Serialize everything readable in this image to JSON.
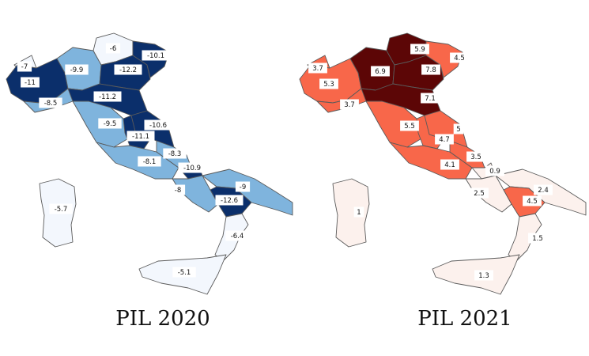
{
  "maps": [
    {
      "id": "2020",
      "title": "PIL 2020",
      "scheme": "blues",
      "regions": [
        {
          "name": "Valle d'Aosta",
          "value": "-7",
          "fill": "#f3f7fd"
        },
        {
          "name": "Piemonte",
          "value": "-11",
          "fill": "#0b2f6b"
        },
        {
          "name": "Lombardia",
          "value": "-9.9",
          "fill": "#7fb4dd"
        },
        {
          "name": "Trentino-Alto Adige",
          "value": "-6",
          "fill": "#f3f7fd"
        },
        {
          "name": "Veneto",
          "value": "-12.2",
          "fill": "#0b2f6b"
        },
        {
          "name": "Friuli-Venezia Giulia",
          "value": "-10.1",
          "fill": "#0b2f6b"
        },
        {
          "name": "Liguria",
          "value": "-8.5",
          "fill": "#7fb4dd"
        },
        {
          "name": "Emilia-Romagna",
          "value": "-11.2",
          "fill": "#0b2f6b"
        },
        {
          "name": "Toscana",
          "value": "-9.5",
          "fill": "#7fb4dd"
        },
        {
          "name": "Marche",
          "value": "-10.6",
          "fill": "#0b2f6b"
        },
        {
          "name": "Umbria",
          "value": "-11.1",
          "fill": "#0b2f6b"
        },
        {
          "name": "Lazio",
          "value": "-8.1",
          "fill": "#7fb4dd"
        },
        {
          "name": "Abruzzo",
          "value": "-8.3",
          "fill": "#7fb4dd"
        },
        {
          "name": "Molise",
          "value": "-10.9",
          "fill": "#0b2f6b"
        },
        {
          "name": "Campania",
          "value": "-8",
          "fill": "#7fb4dd"
        },
        {
          "name": "Puglia",
          "value": "-9",
          "fill": "#7fb4dd"
        },
        {
          "name": "Basilicata",
          "value": "-12.6",
          "fill": "#0b2f6b"
        },
        {
          "name": "Calabria",
          "value": "-6.4",
          "fill": "#f3f7fd"
        },
        {
          "name": "Sicilia",
          "value": "-5.1",
          "fill": "#f3f7fd"
        },
        {
          "name": "Sardegna",
          "value": "-5.7",
          "fill": "#f3f7fd"
        }
      ]
    },
    {
      "id": "2021",
      "title": "PIL 2021",
      "scheme": "reds",
      "regions": [
        {
          "name": "Valle d'Aosta",
          "value": "3.7",
          "fill": "#f8674a"
        },
        {
          "name": "Piemonte",
          "value": "5.3",
          "fill": "#f8674a"
        },
        {
          "name": "Lombardia",
          "value": "6.9",
          "fill": "#5c0606"
        },
        {
          "name": "Trentino-Alto Adige",
          "value": "5.9",
          "fill": "#5c0606"
        },
        {
          "name": "Veneto",
          "value": "7.8",
          "fill": "#5c0606"
        },
        {
          "name": "Friuli-Venezia Giulia",
          "value": "4.5",
          "fill": "#f8674a"
        },
        {
          "name": "Liguria",
          "value": "3.7",
          "fill": "#f8674a"
        },
        {
          "name": "Emilia-Romagna",
          "value": "7.1",
          "fill": "#5c0606"
        },
        {
          "name": "Toscana",
          "value": "5.5",
          "fill": "#f8674a"
        },
        {
          "name": "Marche",
          "value": "5",
          "fill": "#f8674a"
        },
        {
          "name": "Umbria",
          "value": "4.7",
          "fill": "#f8674a"
        },
        {
          "name": "Lazio",
          "value": "4.1",
          "fill": "#f8674a"
        },
        {
          "name": "Abruzzo",
          "value": "3.5",
          "fill": "#f8674a"
        },
        {
          "name": "Molise",
          "value": "0.9",
          "fill": "#fcf1ed"
        },
        {
          "name": "Campania",
          "value": "2.5",
          "fill": "#fcf1ed"
        },
        {
          "name": "Puglia",
          "value": "2.4",
          "fill": "#fcf1ed"
        },
        {
          "name": "Basilicata",
          "value": "4.5",
          "fill": "#f8674a"
        },
        {
          "name": "Calabria",
          "value": "1.5",
          "fill": "#fcf1ed"
        },
        {
          "name": "Sicilia",
          "value": "1.3",
          "fill": "#fcf1ed"
        },
        {
          "name": "Sardegna",
          "value": "1",
          "fill": "#fcf1ed"
        }
      ]
    }
  ]
}
